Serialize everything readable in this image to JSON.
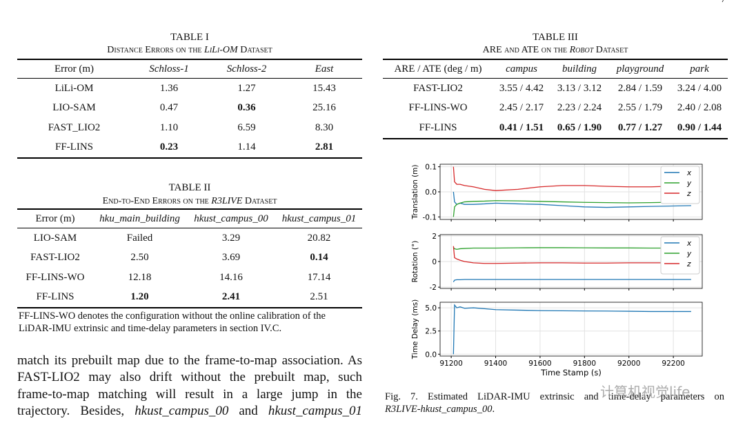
{
  "page_number": "7",
  "table1": {
    "title": "TABLE I",
    "caption": [
      "Distance Errors on the ",
      {
        "italic": "LiLi-OM"
      },
      " Dataset"
    ],
    "header": [
      "Error (m)",
      {
        "italic": "Schloss-1"
      },
      {
        "italic": "Schloss-2"
      },
      {
        "italic": "East"
      }
    ],
    "rows": [
      [
        "LiLi-OM",
        "1.36",
        "1.27",
        "15.43"
      ],
      [
        "LIO-SAM",
        "0.47",
        {
          "bold": "0.36"
        },
        "25.16"
      ],
      [
        "FAST_LIO2",
        "1.10",
        "6.59",
        "8.30"
      ],
      [
        "FF-LINS",
        {
          "bold": "0.23"
        },
        "1.14",
        {
          "bold": "2.81"
        }
      ]
    ]
  },
  "table2": {
    "title": "TABLE II",
    "caption": [
      "End-to-End Errors on the ",
      {
        "italic": "R3LIVE"
      },
      " Dataset"
    ],
    "header": [
      "Error (m)",
      {
        "italic": "hku_main_building"
      },
      {
        "italic": "hkust_campus_00"
      },
      {
        "italic": "hkust_campus_01"
      }
    ],
    "rows": [
      [
        "LIO-SAM",
        "Failed",
        "3.29",
        "20.82"
      ],
      [
        "FAST-LIO2",
        "2.50",
        "3.69",
        {
          "bold": "0.14"
        }
      ],
      [
        "FF-LINS-WO",
        "12.18",
        "14.16",
        "17.14"
      ],
      [
        "FF-LINS",
        {
          "bold": "1.20"
        },
        {
          "bold": "2.41"
        },
        "2.51"
      ]
    ],
    "note": [
      "FF-LINS-WO denotes the configuration without the online calibration of the",
      "LiDAR-IMU extrinsic and time-delay parameters in section IV.C."
    ]
  },
  "table3": {
    "title": "TABLE III",
    "caption": [
      "ARE and ATE on the ",
      {
        "italic": "Robot"
      },
      " Dataset"
    ],
    "header": [
      "ARE / ATE (deg / m)",
      {
        "italic": "campus"
      },
      {
        "italic": "building"
      },
      {
        "italic": "playground"
      },
      {
        "italic": "park"
      }
    ],
    "rows": [
      [
        "FAST-LIO2",
        "3.55 / 4.42",
        "3.13 / 3.12",
        "2.84 / 1.59",
        "3.24 / 4.00"
      ],
      [
        "FF-LINS-WO",
        "2.45 / 2.17",
        "2.23 / 2.24",
        "2.55 / 1.79",
        "2.40 / 2.08"
      ],
      [
        "FF-LINS",
        {
          "bold": "0.41 / 1.51"
        },
        {
          "bold": "0.65 / 1.90"
        },
        {
          "bold": "0.77 / 1.27"
        },
        {
          "bold": "0.90 / 1.44"
        }
      ]
    ]
  },
  "body_text": [
    [
      "match its prebuilt map due to the frame-to-map association. As"
    ],
    [
      "FAST-LIO2 may also drift without the prebuilt map, such"
    ],
    [
      "frame-to-map matching will result in a large jump in the"
    ],
    [
      "trajectory. Besides, ",
      {
        "italic": "hkust_campus_00"
      },
      " and ",
      {
        "italic": "hkust_campus_01"
      }
    ]
  ],
  "figure_caption": [
    [
      "Fig. 7. Estimated LiDAR-IMU extrinsic and time-delay parameters on"
    ],
    [
      {
        "italic": "R3LIVE-hkust_campus_00"
      },
      "."
    ]
  ],
  "watermark": "计算机视觉life",
  "chart_data": [
    {
      "type": "line",
      "ylabel": "Translation (m)",
      "legend": "upper right",
      "grid": true,
      "xlim": [
        91150,
        92330
      ],
      "xticks": [
        91200,
        91400,
        91600,
        91800,
        92000,
        92200
      ],
      "ylim": [
        -0.11,
        0.11
      ],
      "yticks": [
        -0.1,
        {
          "value": 0,
          "label": "0.0"
        },
        0.1
      ],
      "x": [
        91210,
        91215,
        91225,
        91240,
        91260,
        91300,
        91350,
        91400,
        91500,
        91600,
        91700,
        91800,
        91900,
        92000,
        92100,
        92280
      ],
      "series": [
        {
          "name": "x",
          "color": "#1f77b4",
          "values": [
            0.0,
            -0.04,
            -0.05,
            -0.045,
            -0.05,
            -0.05,
            -0.048,
            -0.045,
            -0.048,
            -0.05,
            -0.055,
            -0.06,
            -0.062,
            -0.06,
            -0.058,
            -0.055
          ]
        },
        {
          "name": "y",
          "color": "#2ca02c",
          "values": [
            -0.1,
            -0.06,
            -0.05,
            -0.045,
            -0.04,
            -0.038,
            -0.037,
            -0.035,
            -0.036,
            -0.038,
            -0.04,
            -0.042,
            -0.043,
            -0.044,
            -0.043,
            -0.04
          ]
        },
        {
          "name": "z",
          "color": "#d62728",
          "values": [
            0.1,
            0.04,
            0.03,
            0.03,
            0.025,
            0.02,
            0.01,
            0.005,
            0.01,
            0.02,
            0.025,
            0.025,
            0.022,
            0.02,
            0.02,
            0.025
          ]
        }
      ]
    },
    {
      "type": "line",
      "ylabel": "Rotation (°)",
      "legend": "upper right",
      "grid": true,
      "xlim": [
        91150,
        92330
      ],
      "xticks": [
        91200,
        91400,
        91600,
        91800,
        92000,
        92200
      ],
      "ylim": [
        -2.1,
        2.1
      ],
      "yticks": [
        -2,
        0,
        2
      ],
      "x": [
        91210,
        91215,
        91225,
        91240,
        91260,
        91300,
        91350,
        91400,
        91500,
        91600,
        91700,
        91800,
        91900,
        92000,
        92100,
        92280
      ],
      "series": [
        {
          "name": "x",
          "color": "#1f77b4",
          "values": [
            -1.6,
            -1.45,
            -1.42,
            -1.42,
            -1.4,
            -1.4,
            -1.4,
            -1.4,
            -1.4,
            -1.4,
            -1.4,
            -1.4,
            -1.4,
            -1.4,
            -1.4,
            -1.4
          ]
        },
        {
          "name": "y",
          "color": "#2ca02c",
          "values": [
            1.1,
            1.0,
            0.95,
            1.0,
            1.02,
            1.05,
            1.05,
            1.05,
            1.07,
            1.08,
            1.08,
            1.07,
            1.06,
            1.06,
            1.05,
            1.05
          ]
        },
        {
          "name": "z",
          "color": "#d62728",
          "values": [
            1.2,
            0.3,
            0.2,
            0.1,
            0.0,
            -0.1,
            -0.15,
            -0.15,
            -0.12,
            -0.1,
            -0.1,
            -0.12,
            -0.12,
            -0.1,
            -0.1,
            -0.1
          ]
        }
      ]
    },
    {
      "type": "line",
      "ylabel": "Time Delay (ms)",
      "xlabel": "Time Stamp (s)",
      "grid": true,
      "xlim": [
        91150,
        92330
      ],
      "xticks": [
        91200,
        91400,
        91600,
        91800,
        92000,
        92200
      ],
      "ylim": [
        -0.2,
        5.6
      ],
      "yticks": [
        {
          "value": 0,
          "label": "0.0"
        },
        2.5,
        {
          "value": 5,
          "label": "5.0"
        }
      ],
      "x": [
        91210,
        91215,
        91225,
        91240,
        91260,
        91300,
        91350,
        91400,
        91500,
        91600,
        91700,
        91800,
        91900,
        92000,
        92100,
        92280
      ],
      "series": [
        {
          "color": "#1f77b4",
          "values": [
            0,
            5.3,
            5.0,
            5.1,
            4.95,
            5.0,
            4.9,
            4.8,
            4.75,
            4.7,
            4.68,
            4.66,
            4.65,
            4.63,
            4.6,
            4.6
          ]
        }
      ]
    }
  ]
}
